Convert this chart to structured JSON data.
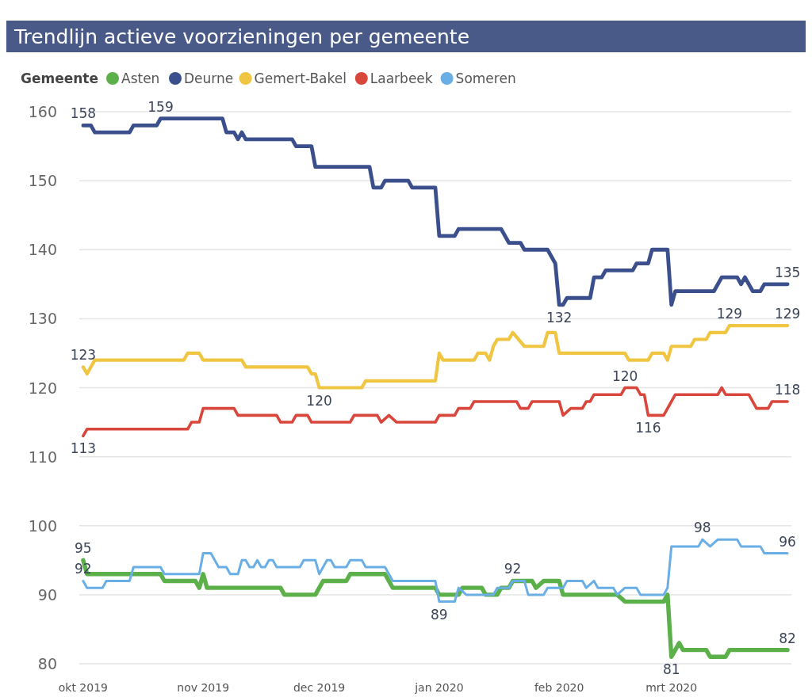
{
  "chart_data": {
    "type": "line",
    "title": "Trendlijn actieve voorzieningen per gemeente",
    "legend_title": "Gemeente",
    "legend": "top left",
    "grid": "y",
    "xlim": [
      "2019-09-30",
      "2020-04-01"
    ],
    "xticks": [
      {
        "value": "2019-10-01",
        "label": "okt 2019"
      },
      {
        "value": "2019-11-01",
        "label": "nov 2019"
      },
      {
        "value": "2019-12-01",
        "label": "dec 2019"
      },
      {
        "value": "2020-01-01",
        "label": "jan 2020"
      },
      {
        "value": "2020-02-01",
        "label": "feb 2020"
      },
      {
        "value": "2020-03-01",
        "label": "mrt 2020"
      }
    ],
    "ylim": [
      80,
      160
    ],
    "yticks": [
      80,
      90,
      100,
      110,
      120,
      130,
      140,
      150,
      160
    ],
    "series": [
      {
        "name": "Asten",
        "color": "#5bb04a",
        "x": [
          "2019-10-01",
          "2019-10-02",
          "2019-10-21",
          "2019-10-22",
          "2019-10-30",
          "2019-10-31",
          "2019-11-01",
          "2019-11-02",
          "2019-11-21",
          "2019-11-22",
          "2019-11-30",
          "2019-12-02",
          "2019-12-08",
          "2019-12-09",
          "2019-12-18",
          "2019-12-20",
          "2019-12-31",
          "2020-01-01",
          "2020-01-06",
          "2020-01-07",
          "2020-01-12",
          "2020-01-13",
          "2020-01-16",
          "2020-01-17",
          "2020-01-19",
          "2020-01-20",
          "2020-01-25",
          "2020-01-26",
          "2020-01-28",
          "2020-02-01",
          "2020-02-02",
          "2020-02-16",
          "2020-02-18",
          "2020-02-28",
          "2020-02-29",
          "2020-03-01",
          "2020-03-03",
          "2020-03-04",
          "2020-03-10",
          "2020-03-11",
          "2020-03-15",
          "2020-03-16",
          "2020-03-31"
        ],
        "values": [
          95,
          93,
          93,
          92,
          92,
          91,
          93,
          91,
          91,
          90,
          90,
          92,
          92,
          93,
          93,
          91,
          91,
          90,
          90,
          91,
          91,
          90,
          90,
          91,
          91,
          92,
          92,
          91,
          92,
          92,
          90,
          90,
          89,
          89,
          90,
          81,
          83,
          82,
          82,
          81,
          81,
          82,
          82
        ]
      },
      {
        "name": "Deurne",
        "color": "#3b4f8c",
        "x": [
          "2019-10-01",
          "2019-10-03",
          "2019-10-04",
          "2019-10-13",
          "2019-10-14",
          "2019-10-20",
          "2019-10-21",
          "2019-11-06",
          "2019-11-07",
          "2019-11-09",
          "2019-11-10",
          "2019-11-11",
          "2019-11-12",
          "2019-11-24",
          "2019-11-25",
          "2019-11-29",
          "2019-11-30",
          "2019-12-14",
          "2019-12-15",
          "2019-12-17",
          "2019-12-18",
          "2019-12-24",
          "2019-12-25",
          "2019-12-31",
          "2020-01-01",
          "2020-01-05",
          "2020-01-06",
          "2020-01-17",
          "2020-01-19",
          "2020-01-22",
          "2020-01-23",
          "2020-01-29",
          "2020-01-31",
          "2020-02-01",
          "2020-02-02",
          "2020-02-03",
          "2020-02-09",
          "2020-02-10",
          "2020-02-12",
          "2020-02-13",
          "2020-02-20",
          "2020-02-21",
          "2020-02-24",
          "2020-02-25",
          "2020-02-29",
          "2020-03-01",
          "2020-03-02",
          "2020-03-12",
          "2020-03-14",
          "2020-03-18",
          "2020-03-19",
          "2020-03-20",
          "2020-03-22",
          "2020-03-24",
          "2020-03-25",
          "2020-03-31"
        ],
        "values": [
          158,
          158,
          157,
          157,
          158,
          158,
          159,
          159,
          157,
          157,
          156,
          157,
          156,
          156,
          155,
          155,
          152,
          152,
          149,
          149,
          150,
          150,
          149,
          149,
          142,
          142,
          143,
          143,
          141,
          141,
          140,
          140,
          138,
          132,
          132,
          133,
          133,
          136,
          136,
          137,
          137,
          138,
          138,
          140,
          140,
          132,
          134,
          134,
          136,
          136,
          135,
          136,
          134,
          134,
          135,
          135
        ]
      },
      {
        "name": "Gemert-Bakel",
        "color": "#f0c541",
        "x": [
          "2019-10-01",
          "2019-10-02",
          "2019-10-04",
          "2019-10-27",
          "2019-10-28",
          "2019-10-31",
          "2019-11-01",
          "2019-11-11",
          "2019-11-12",
          "2019-11-28",
          "2019-11-29",
          "2019-11-30",
          "2019-12-01",
          "2019-12-12",
          "2019-12-13",
          "2019-12-31",
          "2020-01-01",
          "2020-01-02",
          "2020-01-10",
          "2020-01-11",
          "2020-01-13",
          "2020-01-14",
          "2020-01-15",
          "2020-01-16",
          "2020-01-19",
          "2020-01-20",
          "2020-01-23",
          "2020-01-28",
          "2020-01-29",
          "2020-01-31",
          "2020-02-01",
          "2020-02-18",
          "2020-02-19",
          "2020-02-24",
          "2020-02-25",
          "2020-02-28",
          "2020-02-29",
          "2020-03-01",
          "2020-03-06",
          "2020-03-07",
          "2020-03-10",
          "2020-03-11",
          "2020-03-15",
          "2020-03-16",
          "2020-03-31"
        ],
        "values": [
          123,
          122,
          124,
          124,
          125,
          125,
          124,
          124,
          123,
          123,
          122,
          122,
          120,
          120,
          121,
          121,
          125,
          124,
          124,
          125,
          125,
          124,
          126,
          127,
          127,
          128,
          126,
          126,
          128,
          128,
          125,
          125,
          124,
          124,
          125,
          125,
          124,
          126,
          126,
          127,
          127,
          128,
          128,
          129,
          129
        ]
      },
      {
        "name": "Laarbeek",
        "color": "#d9463b",
        "x": [
          "2019-10-01",
          "2019-10-02",
          "2019-10-28",
          "2019-10-29",
          "2019-10-31",
          "2019-11-01",
          "2019-11-09",
          "2019-11-10",
          "2019-11-20",
          "2019-11-21",
          "2019-11-24",
          "2019-11-25",
          "2019-11-28",
          "2019-11-29",
          "2019-12-09",
          "2019-12-10",
          "2019-12-16",
          "2019-12-17",
          "2019-12-19",
          "2019-12-21",
          "2019-12-31",
          "2020-01-01",
          "2020-01-05",
          "2020-01-06",
          "2020-01-09",
          "2020-01-10",
          "2020-01-21",
          "2020-01-22",
          "2020-01-24",
          "2020-01-25",
          "2020-02-01",
          "2020-02-02",
          "2020-02-04",
          "2020-02-07",
          "2020-02-08",
          "2020-02-09",
          "2020-02-10",
          "2020-02-17",
          "2020-02-18",
          "2020-02-21",
          "2020-02-22",
          "2020-02-23",
          "2020-02-24",
          "2020-02-28",
          "2020-03-02",
          "2020-03-13",
          "2020-03-14",
          "2020-03-15",
          "2020-03-21",
          "2020-03-23",
          "2020-03-26",
          "2020-03-27",
          "2020-03-31"
        ],
        "values": [
          113,
          114,
          114,
          115,
          115,
          117,
          117,
          116,
          116,
          115,
          115,
          116,
          116,
          115,
          115,
          116,
          116,
          115,
          116,
          115,
          115,
          116,
          116,
          117,
          117,
          118,
          118,
          117,
          117,
          118,
          118,
          116,
          117,
          117,
          118,
          118,
          119,
          119,
          120,
          120,
          119,
          119,
          116,
          116,
          119,
          119,
          120,
          119,
          119,
          117,
          117,
          118,
          118
        ]
      },
      {
        "name": "Someren",
        "color": "#6aaee6",
        "x": [
          "2019-10-01",
          "2019-10-02",
          "2019-10-06",
          "2019-10-07",
          "2019-10-13",
          "2019-10-14",
          "2019-10-21",
          "2019-10-22",
          "2019-10-31",
          "2019-11-01",
          "2019-11-03",
          "2019-11-05",
          "2019-11-07",
          "2019-11-08",
          "2019-11-10",
          "2019-11-11",
          "2019-11-12",
          "2019-11-13",
          "2019-11-14",
          "2019-11-15",
          "2019-11-16",
          "2019-11-17",
          "2019-11-18",
          "2019-11-19",
          "2019-11-20",
          "2019-11-26",
          "2019-11-27",
          "2019-11-30",
          "2019-12-01",
          "2019-12-03",
          "2019-12-04",
          "2019-12-05",
          "2019-12-08",
          "2019-12-09",
          "2019-12-12",
          "2019-12-13",
          "2019-12-18",
          "2019-12-20",
          "2019-12-31",
          "2020-01-01",
          "2020-01-05",
          "2020-01-06",
          "2020-01-08",
          "2020-01-15",
          "2020-01-16",
          "2020-01-19",
          "2020-01-20",
          "2020-01-23",
          "2020-01-24",
          "2020-01-28",
          "2020-01-29",
          "2020-02-02",
          "2020-02-03",
          "2020-02-07",
          "2020-02-08",
          "2020-02-10",
          "2020-02-11",
          "2020-02-15",
          "2020-02-16",
          "2020-02-18",
          "2020-02-21",
          "2020-02-22",
          "2020-02-28",
          "2020-02-29",
          "2020-03-01",
          "2020-03-08",
          "2020-03-09",
          "2020-03-11",
          "2020-03-13",
          "2020-03-18",
          "2020-03-19",
          "2020-03-24",
          "2020-03-25",
          "2020-03-31"
        ],
        "values": [
          92,
          91,
          91,
          92,
          92,
          94,
          94,
          93,
          93,
          96,
          96,
          94,
          94,
          93,
          93,
          95,
          95,
          94,
          94,
          95,
          94,
          94,
          95,
          95,
          94,
          94,
          95,
          95,
          93,
          95,
          95,
          94,
          94,
          95,
          95,
          94,
          94,
          92,
          92,
          89,
          89,
          91,
          90,
          90,
          91,
          91,
          92,
          92,
          90,
          90,
          91,
          91,
          92,
          92,
          91,
          92,
          91,
          91,
          90,
          91,
          91,
          90,
          90,
          91,
          97,
          97,
          98,
          97,
          98,
          98,
          97,
          97,
          96,
          96
        ]
      }
    ],
    "annotations": [
      {
        "text": "158",
        "x": "2019-10-01",
        "y": 158
      },
      {
        "text": "159",
        "x": "2019-10-21",
        "y": 159
      },
      {
        "text": "132",
        "x": "2020-02-01",
        "y": 132
      },
      {
        "text": "135",
        "x": "2020-03-31",
        "y": 135
      },
      {
        "text": "123",
        "x": "2019-10-01",
        "y": 123
      },
      {
        "text": "120",
        "x": "2019-12-01",
        "y": 120
      },
      {
        "text": "120",
        "x": "2020-02-18",
        "y": 120
      },
      {
        "text": "129",
        "x": "2020-03-16",
        "y": 129
      },
      {
        "text": "129",
        "x": "2020-03-31",
        "y": 129
      },
      {
        "text": "113",
        "x": "2019-10-01",
        "y": 113
      },
      {
        "text": "116",
        "x": "2020-02-24",
        "y": 116
      },
      {
        "text": "118",
        "x": "2020-03-31",
        "y": 118
      },
      {
        "text": "95",
        "x": "2019-10-01",
        "y": 95
      },
      {
        "text": "92",
        "x": "2019-10-01",
        "y": 92
      },
      {
        "text": "89",
        "x": "2020-01-01",
        "y": 89
      },
      {
        "text": "92",
        "x": "2020-01-20",
        "y": 92
      },
      {
        "text": "81",
        "x": "2020-03-01",
        "y": 81
      },
      {
        "text": "82",
        "x": "2020-03-31",
        "y": 82
      },
      {
        "text": "98",
        "x": "2020-03-09",
        "y": 98
      },
      {
        "text": "96",
        "x": "2020-03-31",
        "y": 96
      }
    ]
  }
}
